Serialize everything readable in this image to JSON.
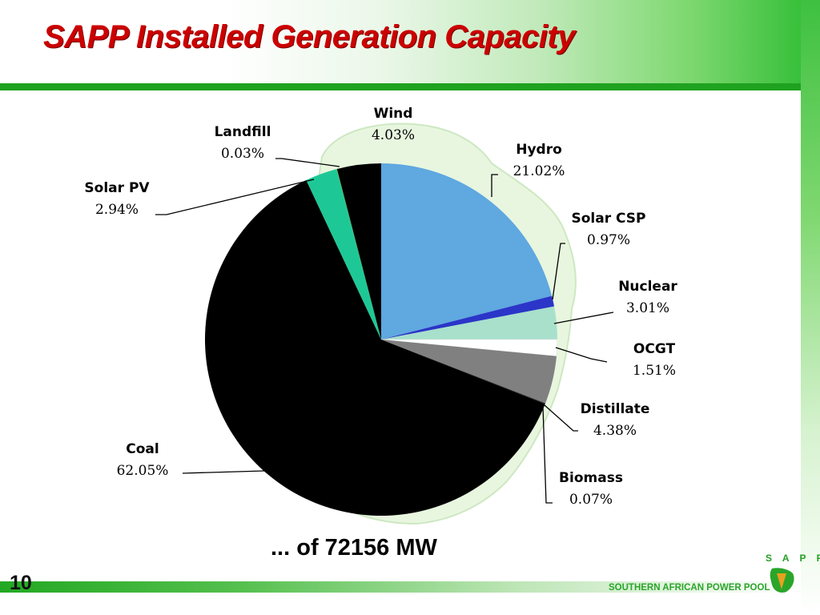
{
  "slide": {
    "title": "SAPP Installed Generation Capacity",
    "page_number": "10",
    "footer_org": "SOUTHERN AFRICAN POWER POOL",
    "logo_text": "S A P P",
    "accent_color": "#1fa21f",
    "title_color": "#cc0000"
  },
  "chart_data": {
    "type": "pie",
    "total_label": "... of 72156 MW",
    "start": "12 o'clock, clockwise",
    "slices": [
      {
        "name": "Hydro",
        "pct_label": "21.02%",
        "value": 21.02,
        "color": "#5fa8e0"
      },
      {
        "name": "Solar CSP",
        "pct_label": "0.97%",
        "value": 0.97,
        "color": "#2b35c8"
      },
      {
        "name": "Nuclear",
        "pct_label": "3.01%",
        "value": 3.01,
        "color": "#a8e0cc"
      },
      {
        "name": "OCGT",
        "pct_label": "1.51%",
        "value": 1.51,
        "color": "#ffffff"
      },
      {
        "name": "Distillate",
        "pct_label": "4.38%",
        "value": 4.38,
        "color": "#808080"
      },
      {
        "name": "Biomass",
        "pct_label": "0.07%",
        "value": 0.07,
        "color": "#303030"
      },
      {
        "name": "Coal",
        "pct_label": "62.05%",
        "value": 62.05,
        "color": "#000000"
      },
      {
        "name": "Solar PV",
        "pct_label": "2.94%",
        "value": 2.94,
        "color": "#1ec896"
      },
      {
        "name": "Landfill",
        "pct_label": "0.03%",
        "value": 0.03,
        "color": "#808000"
      },
      {
        "name": "Wind",
        "pct_label": "4.03%",
        "value": 4.03,
        "color": "#000000"
      }
    ]
  }
}
